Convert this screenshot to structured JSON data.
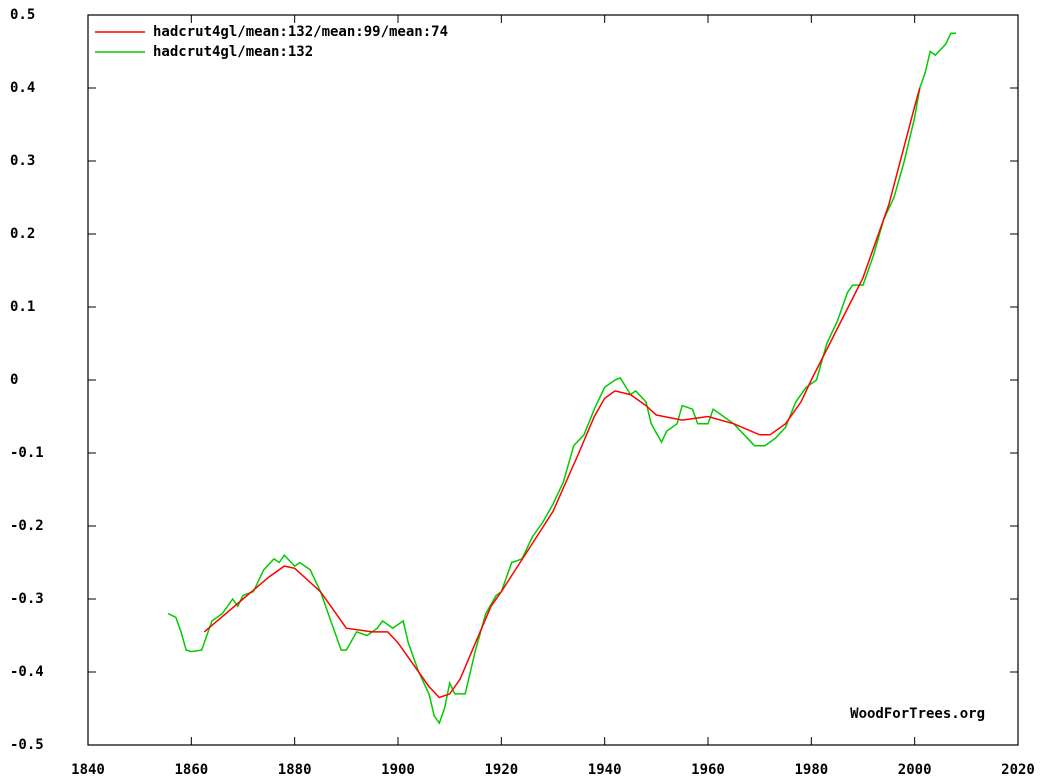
{
  "chart_data": {
    "type": "line",
    "annotation": "WoodForTrees.org",
    "legend": "upper left",
    "grid": false,
    "xlim": [
      1840,
      2020
    ],
    "xticks": [
      1840,
      1860,
      1880,
      1900,
      1920,
      1940,
      1960,
      1980,
      2000,
      2020
    ],
    "ylim": [
      -0.5,
      0.5
    ],
    "yticks": [
      -0.5,
      -0.4,
      -0.3,
      -0.2,
      -0.1,
      0,
      0.1,
      0.2,
      0.3,
      0.4,
      0.5
    ],
    "series": [
      {
        "name": "hadcrut4gl/mean:132/mean:99/mean:74",
        "color": "#ff0000",
        "x": [
          1862.5,
          1865,
          1870,
          1875,
          1878,
          1880,
          1885,
          1888,
          1890,
          1895,
          1898,
          1900,
          1903,
          1906,
          1908,
          1910,
          1912,
          1915,
          1918,
          1920,
          1925,
          1930,
          1935,
          1938,
          1940,
          1942,
          1945,
          1948,
          1950,
          1955,
          1960,
          1965,
          1970,
          1972,
          1975,
          1978,
          1980,
          1985,
          1990,
          1995,
          2000,
          2001
        ],
        "values": [
          -0.345,
          -0.33,
          -0.3,
          -0.27,
          -0.255,
          -0.258,
          -0.29,
          -0.32,
          -0.34,
          -0.345,
          -0.345,
          -0.36,
          -0.39,
          -0.42,
          -0.435,
          -0.43,
          -0.41,
          -0.36,
          -0.31,
          -0.29,
          -0.235,
          -0.18,
          -0.1,
          -0.05,
          -0.025,
          -0.015,
          -0.02,
          -0.035,
          -0.048,
          -0.055,
          -0.05,
          -0.06,
          -0.075,
          -0.075,
          -0.06,
          -0.03,
          0.0,
          0.07,
          0.14,
          0.24,
          0.375,
          0.4
        ]
      },
      {
        "name": "hadcrut4gl/mean:132",
        "color": "#00cc00",
        "x": [
          1855.5,
          1857,
          1858,
          1859,
          1860,
          1862,
          1863,
          1864,
          1866,
          1868,
          1869,
          1870,
          1872,
          1874,
          1876,
          1877,
          1878,
          1880,
          1881,
          1883,
          1885,
          1887,
          1889,
          1890,
          1892,
          1894,
          1896,
          1897,
          1899,
          1901,
          1902,
          1904,
          1906,
          1907,
          1908,
          1909,
          1910,
          1911,
          1913,
          1915,
          1917,
          1919,
          1920,
          1922,
          1924,
          1926,
          1928,
          1930,
          1932,
          1934,
          1936,
          1938,
          1940,
          1942,
          1943,
          1945,
          1946,
          1948,
          1949,
          1951,
          1952,
          1954,
          1955,
          1957,
          1958,
          1960,
          1961,
          1963,
          1965,
          1967,
          1969,
          1971,
          1973,
          1975,
          1977,
          1979,
          1981,
          1983,
          1985,
          1987,
          1988,
          1990,
          1992,
          1994,
          1996,
          1998,
          2000,
          2001,
          2002,
          2003,
          2004,
          2006,
          2007,
          2008
        ],
        "values": [
          -0.32,
          -0.325,
          -0.345,
          -0.37,
          -0.372,
          -0.37,
          -0.35,
          -0.33,
          -0.32,
          -0.3,
          -0.31,
          -0.295,
          -0.29,
          -0.26,
          -0.245,
          -0.25,
          -0.24,
          -0.255,
          -0.25,
          -0.26,
          -0.29,
          -0.33,
          -0.37,
          -0.37,
          -0.345,
          -0.35,
          -0.34,
          -0.33,
          -0.34,
          -0.33,
          -0.36,
          -0.4,
          -0.43,
          -0.46,
          -0.47,
          -0.45,
          -0.415,
          -0.43,
          -0.43,
          -0.37,
          -0.32,
          -0.295,
          -0.29,
          -0.25,
          -0.245,
          -0.215,
          -0.195,
          -0.17,
          -0.14,
          -0.09,
          -0.075,
          -0.04,
          -0.01,
          0.0,
          0.003,
          -0.02,
          -0.015,
          -0.03,
          -0.06,
          -0.085,
          -0.07,
          -0.06,
          -0.035,
          -0.04,
          -0.06,
          -0.06,
          -0.04,
          -0.05,
          -0.06,
          -0.075,
          -0.09,
          -0.09,
          -0.08,
          -0.065,
          -0.03,
          -0.01,
          0.0,
          0.05,
          0.08,
          0.12,
          0.13,
          0.13,
          0.17,
          0.22,
          0.25,
          0.3,
          0.36,
          0.4,
          0.42,
          0.45,
          0.445,
          0.46,
          0.475,
          0.475
        ]
      }
    ]
  }
}
